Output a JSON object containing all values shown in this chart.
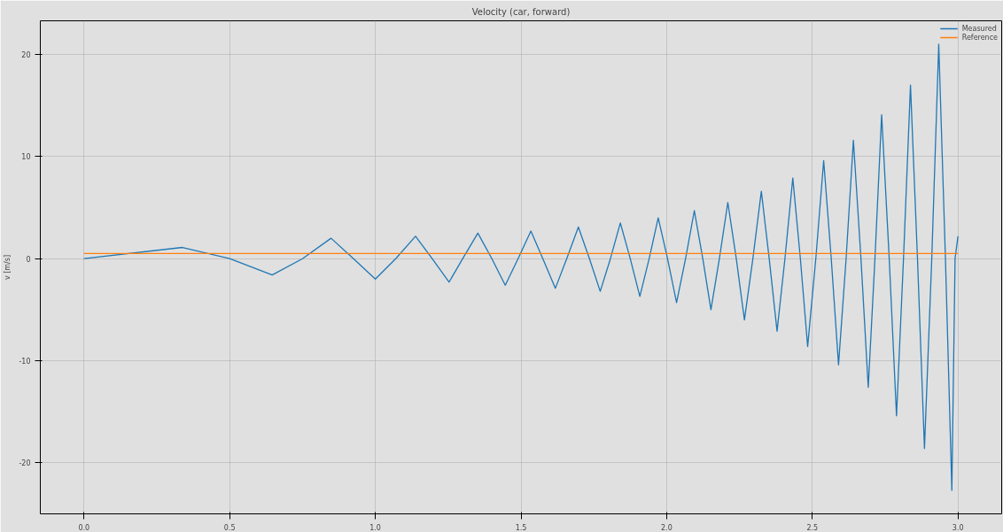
{
  "chart_data": {
    "type": "line",
    "title": "Velocity (car, forward)",
    "ylabel": "v [m/s]",
    "xlim": [
      -0.15,
      3.15
    ],
    "ylim": [
      -25.0,
      23.3
    ],
    "xticks": [
      {
        "value": 0,
        "label": "0.0"
      },
      {
        "value": 0.5,
        "label": "0.5"
      },
      {
        "value": 1,
        "label": "1.0"
      },
      {
        "value": 1.5,
        "label": "1.5"
      },
      {
        "value": 2,
        "label": "2.0"
      },
      {
        "value": 2.5,
        "label": "2.5"
      },
      {
        "value": 3,
        "label": "3.0"
      }
    ],
    "yticks": [
      -20,
      -10,
      0,
      10,
      20
    ],
    "grid": true,
    "legend": "top right",
    "line_style": "solid",
    "series": [
      {
        "name": "Measured",
        "color": "#1f77b4",
        "x": [
          0,
          0.338,
          0.5,
          0.646,
          0.75,
          0.848,
          0.925,
          1.0,
          1.07,
          1.138,
          1.195,
          1.253,
          1.3,
          1.352,
          1.4,
          1.446,
          1.49,
          1.534,
          1.575,
          1.618,
          1.657,
          1.697,
          1.735,
          1.772,
          1.807,
          1.841,
          1.875,
          1.908,
          1.94,
          1.971,
          2.003,
          2.034,
          2.065,
          2.095,
          2.124,
          2.152,
          2.181,
          2.21,
          2.239,
          2.267,
          2.296,
          2.325,
          2.352,
          2.379,
          2.406,
          2.433,
          2.459,
          2.484,
          2.512,
          2.539,
          2.565,
          2.59,
          2.616,
          2.641,
          2.667,
          2.692,
          2.715,
          2.738,
          2.764,
          2.789,
          2.813,
          2.837,
          2.861,
          2.885,
          2.91,
          2.934,
          2.957,
          2.979,
          2.99,
          3.0
        ],
        "values": [
          0,
          1.1,
          0,
          -1.6,
          0,
          2.0,
          0,
          -2.0,
          0,
          2.2,
          0,
          -2.3,
          0,
          2.5,
          0,
          -2.6,
          0,
          2.7,
          0,
          -2.9,
          0,
          3.1,
          0,
          -3.2,
          0,
          3.5,
          0,
          -3.7,
          0,
          4.0,
          0,
          -4.3,
          0,
          4.7,
          0,
          -5.0,
          0,
          5.5,
          0,
          -6.0,
          0,
          6.6,
          0,
          -7.1,
          0,
          7.9,
          0,
          -8.6,
          0,
          9.6,
          0,
          -10.4,
          0,
          11.6,
          0,
          -12.6,
          0,
          14.1,
          0,
          -15.4,
          0,
          17.0,
          0,
          -18.6,
          0,
          21.0,
          0,
          -22.7,
          0,
          2.2
        ]
      },
      {
        "name": "Reference",
        "color": "#ff7f0e",
        "x": [
          0,
          3.0
        ],
        "values": [
          0.5,
          0.5
        ]
      }
    ]
  }
}
